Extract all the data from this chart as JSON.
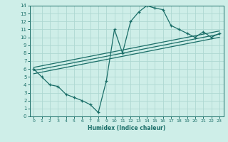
{
  "bg_color": "#ceeee8",
  "line_color": "#1a6e68",
  "grid_color": "#aed8d2",
  "xlabel": "Humidex (Indice chaleur)",
  "xlim": [
    -0.5,
    23.5
  ],
  "ylim": [
    0,
    14
  ],
  "xticks": [
    0,
    1,
    2,
    3,
    4,
    5,
    6,
    7,
    8,
    9,
    10,
    11,
    12,
    13,
    14,
    15,
    16,
    17,
    18,
    19,
    20,
    21,
    22,
    23
  ],
  "yticks": [
    0,
    1,
    2,
    3,
    4,
    5,
    6,
    7,
    8,
    9,
    10,
    11,
    12,
    13,
    14
  ],
  "main_x": [
    0,
    1,
    2,
    3,
    4,
    5,
    6,
    7,
    8,
    9,
    10,
    11,
    12,
    13,
    14,
    15,
    16,
    17,
    18,
    19,
    20,
    21,
    22,
    23
  ],
  "main_y": [
    6.0,
    5.0,
    4.0,
    3.8,
    2.8,
    2.4,
    2.0,
    1.5,
    0.5,
    4.5,
    11.0,
    8.0,
    12.0,
    13.2,
    14.0,
    13.7,
    13.5,
    11.5,
    11.0,
    10.5,
    10.0,
    10.7,
    10.0,
    10.5
  ],
  "line1_x": [
    0,
    23
  ],
  "line1_y": [
    6.2,
    10.8
  ],
  "line2_x": [
    0,
    23
  ],
  "line2_y": [
    5.8,
    10.4
  ],
  "line3_x": [
    0,
    23
  ],
  "line3_y": [
    5.4,
    10.0
  ]
}
